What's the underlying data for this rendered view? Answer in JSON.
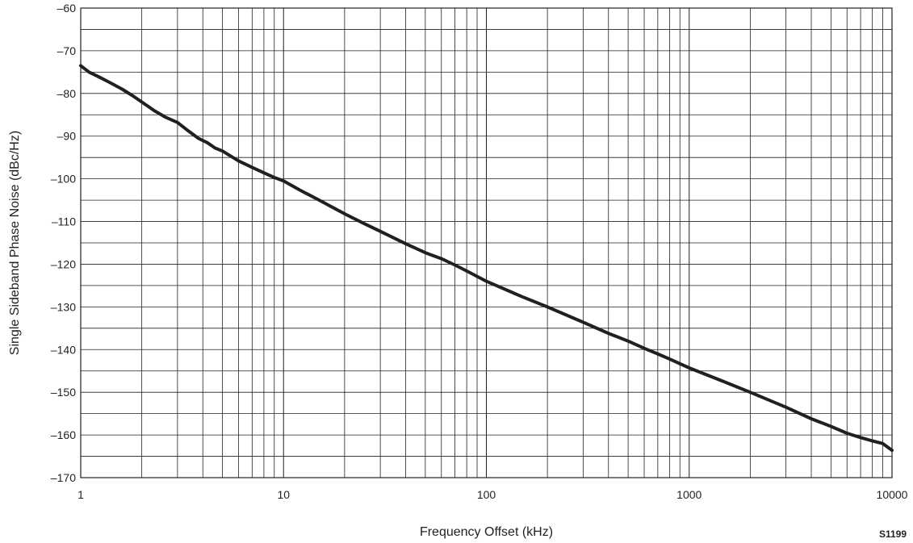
{
  "chart_data": {
    "type": "line",
    "title": "",
    "xlabel": "Frequency Offset (kHz)",
    "ylabel": "Single Sideband Phase Noise (dBc/Hz)",
    "figure_id": "S1199",
    "x_scale": "log",
    "xlim": [
      1,
      10000
    ],
    "ylim": [
      -170,
      -60
    ],
    "x_ticks": [
      1,
      10,
      100,
      1000,
      10000
    ],
    "x_tick_labels": [
      "1",
      "10",
      "100",
      "1000",
      "10000"
    ],
    "y_ticks": [
      -60,
      -70,
      -80,
      -90,
      -100,
      -110,
      -120,
      -130,
      -140,
      -150,
      -160,
      -170
    ],
    "y_tick_labels": [
      "–60",
      "–70",
      "–80",
      "–90",
      "–100",
      "–110",
      "–120",
      "–130",
      "–140",
      "–150",
      "–160",
      "–170"
    ],
    "grid": true,
    "legend": "none",
    "line_color": "#231f20",
    "series": [
      {
        "x": [
          1,
          1.1,
          1.25,
          1.4,
          1.6,
          1.8,
          2,
          2.3,
          2.6,
          3,
          3.4,
          3.8,
          4.2,
          4.6,
          5,
          6,
          7,
          8,
          9,
          10,
          12,
          15,
          20,
          25,
          30,
          40,
          50,
          60,
          70,
          80,
          100,
          150,
          200,
          300,
          400,
          500,
          600,
          700,
          800,
          1000,
          1500,
          2000,
          3000,
          4000,
          5000,
          6000,
          7000,
          8000,
          9000,
          10000
        ],
        "y": [
          -73.5,
          -75,
          -76.3,
          -77.5,
          -79,
          -80.5,
          -82,
          -84,
          -85.5,
          -86.8,
          -88.8,
          -90.5,
          -91.5,
          -92.8,
          -93.5,
          -95.8,
          -97.3,
          -98.6,
          -99.7,
          -100.5,
          -102.6,
          -105,
          -108.2,
          -110.5,
          -112.3,
          -115.2,
          -117.3,
          -118.7,
          -120.2,
          -121.6,
          -124,
          -127.6,
          -130,
          -133.6,
          -136.2,
          -138,
          -139.7,
          -141,
          -142.2,
          -144.3,
          -147.6,
          -150,
          -153.5,
          -156.2,
          -158,
          -159.6,
          -160.6,
          -161.4,
          -162,
          -163.6
        ]
      }
    ]
  }
}
